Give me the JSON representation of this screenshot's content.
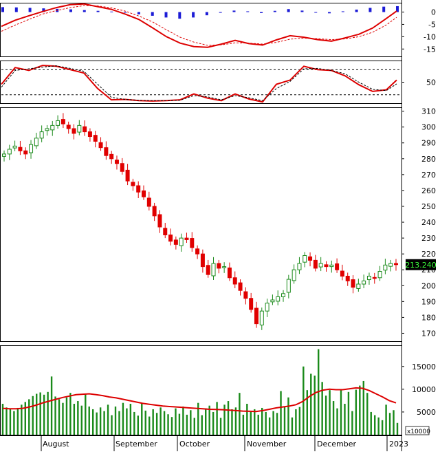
{
  "chart_data": [
    {
      "panel": "macd",
      "type": "bar+line",
      "ylim": [
        -18,
        3.5
      ],
      "yticks": [
        0,
        -5,
        -10,
        -15
      ],
      "x": [
        0,
        20,
        40,
        60,
        80,
        100,
        120,
        140,
        160,
        180,
        200,
        220,
        240,
        260,
        280,
        300,
        320,
        340,
        360,
        380,
        400,
        420,
        440,
        460,
        480,
        500,
        520,
        540,
        560,
        575
      ],
      "series": [
        {
          "role": "macd",
          "color": "#dd0000",
          "values": [
            -5.8,
            -3.3,
            -1.5,
            0.2,
            1.8,
            3.0,
            3.3,
            2.2,
            1.1,
            -0.8,
            -3.0,
            -6.4,
            -10.0,
            -12.6,
            -14.0,
            -14.3,
            -13.0,
            -11.5,
            -12.8,
            -13.4,
            -11.3,
            -9.6,
            -10.2,
            -11.2,
            -11.8,
            -10.5,
            -9.0,
            -6.5,
            -2.6,
            0.4
          ]
        },
        {
          "role": "signal",
          "color": "#dd0000",
          "dashed": true,
          "values": [
            -7.8,
            -5.3,
            -3.0,
            -0.8,
            0.6,
            1.8,
            2.6,
            2.5,
            1.7,
            0.4,
            -1.6,
            -4.0,
            -7.2,
            -10.2,
            -12.2,
            -13.5,
            -13.3,
            -12.5,
            -12.6,
            -13.0,
            -12.3,
            -11.0,
            -10.6,
            -10.8,
            -11.2,
            -10.9,
            -10.0,
            -8.2,
            -5.2,
            -2.1
          ]
        }
      ],
      "histogram": [
        2.0,
        1.9,
        1.7,
        1.5,
        1.3,
        1.1,
        0.8,
        0.5,
        0.2,
        -0.3,
        -0.9,
        -1.5,
        -2.2,
        -2.7,
        -2.2,
        -1.3,
        -0.3,
        0.6,
        0.3,
        -0.4,
        0.5,
        1.2,
        0.6,
        -0.2,
        -0.5,
        0.3,
        1.0,
        1.7,
        2.2,
        2.4
      ]
    },
    {
      "panel": "stochastic",
      "type": "line",
      "ylim": [
        0,
        100
      ],
      "yticks": [
        50
      ],
      "levels": [
        80,
        20
      ],
      "x": [
        0,
        20,
        40,
        60,
        80,
        100,
        120,
        140,
        160,
        180,
        200,
        220,
        240,
        260,
        280,
        300,
        320,
        340,
        360,
        380,
        400,
        420,
        440,
        460,
        480,
        500,
        520,
        540,
        560,
        575
      ],
      "series": [
        {
          "role": "k",
          "color": "#dd0000",
          "values": [
            45,
            85,
            78,
            90,
            88,
            80,
            72,
            35,
            8,
            9,
            6,
            5,
            6,
            8,
            22,
            12,
            6,
            22,
            10,
            3,
            45,
            55,
            88,
            80,
            78,
            65,
            44,
            28,
            32,
            55
          ]
        },
        {
          "role": "d",
          "color": "#000000",
          "dashed": true,
          "values": [
            38,
            78,
            82,
            86,
            89,
            83,
            76,
            45,
            14,
            9,
            7,
            6,
            6,
            7,
            18,
            15,
            8,
            18,
            13,
            6,
            35,
            52,
            82,
            83,
            78,
            70,
            50,
            33,
            30,
            46
          ]
        }
      ]
    },
    {
      "panel": "price",
      "type": "candlestick",
      "ylim": [
        165,
        312
      ],
      "yticks": [
        310,
        300,
        290,
        280,
        270,
        260,
        250,
        240,
        230,
        220,
        210,
        200,
        190,
        180,
        170
      ],
      "last_price": "213.240",
      "last_price_value": 213.24,
      "closes": [
        283,
        286,
        288,
        285,
        283,
        289,
        293,
        297,
        299,
        301,
        304,
        302,
        299,
        296,
        301,
        297,
        294,
        291,
        287,
        282,
        280,
        277,
        272,
        266,
        263,
        259,
        256,
        250,
        244,
        237,
        232,
        228,
        226,
        230,
        229,
        224,
        220,
        212,
        207,
        214,
        211,
        212,
        205,
        201,
        197,
        192,
        185,
        176,
        184,
        189,
        191,
        193,
        195,
        204,
        210,
        214,
        219,
        216,
        211,
        214,
        212,
        213,
        210,
        206,
        203,
        199,
        201,
        203,
        206,
        205,
        209,
        213,
        214,
        213.24
      ]
    },
    {
      "panel": "volume",
      "type": "bar",
      "ylim": [
        0,
        19500
      ],
      "yticks": [
        15000,
        10000,
        5000
      ],
      "unit_label": "x10000",
      "values": [
        6800,
        6000,
        5800,
        5200,
        5900,
        6600,
        7200,
        7800,
        8500,
        9000,
        9300,
        8800,
        9400,
        12800,
        8400,
        7800,
        7000,
        8200,
        9200,
        6800,
        7400,
        6400,
        9000,
        6200,
        5600,
        4900,
        6000,
        5200,
        6600,
        4300,
        6200,
        5200,
        7000,
        5800,
        6800,
        5000,
        4200,
        6900,
        5300,
        4000,
        5600,
        4800,
        6000,
        5200,
        4500,
        3900,
        5800,
        4600,
        6200,
        4400,
        5400,
        3700,
        7000,
        4300,
        5800,
        6400,
        5000,
        7200,
        3700,
        6600,
        7400,
        5600,
        6000,
        9200,
        4400,
        6800,
        5000,
        5600,
        4400,
        5900,
        5000,
        3800,
        5200,
        4800,
        9600,
        6200,
        8200,
        3800,
        5600,
        6100,
        15000,
        9800,
        13400,
        13000,
        18800,
        11600,
        8600,
        9800,
        7400,
        5800,
        9800,
        6800,
        9400,
        5200,
        9900,
        10800,
        11800,
        9200,
        5000,
        4300,
        3800,
        3200,
        6600,
        4800,
        5400,
        2600
      ],
      "ma": [
        5800,
        5700,
        5700,
        5800,
        6100,
        6500,
        7000,
        7400,
        7800,
        8200,
        8500,
        8800,
        8900,
        9000,
        8800,
        8600,
        8300,
        8100,
        7800,
        7500,
        7200,
        6900,
        6700,
        6500,
        6300,
        6200,
        6100,
        6000,
        5900,
        5800,
        5700,
        5600,
        5550,
        5500,
        5400,
        5300,
        5200,
        5150,
        5100,
        5300,
        5600,
        5900,
        6100,
        6300,
        6600,
        7300,
        8400,
        9300,
        9800,
        10000,
        9900,
        9900,
        10100,
        10300,
        10200,
        9700,
        9000,
        8300,
        7500,
        7000
      ]
    }
  ],
  "x_axis": {
    "months": [
      "August",
      "September",
      "October",
      "November",
      "December",
      "2023"
    ]
  }
}
